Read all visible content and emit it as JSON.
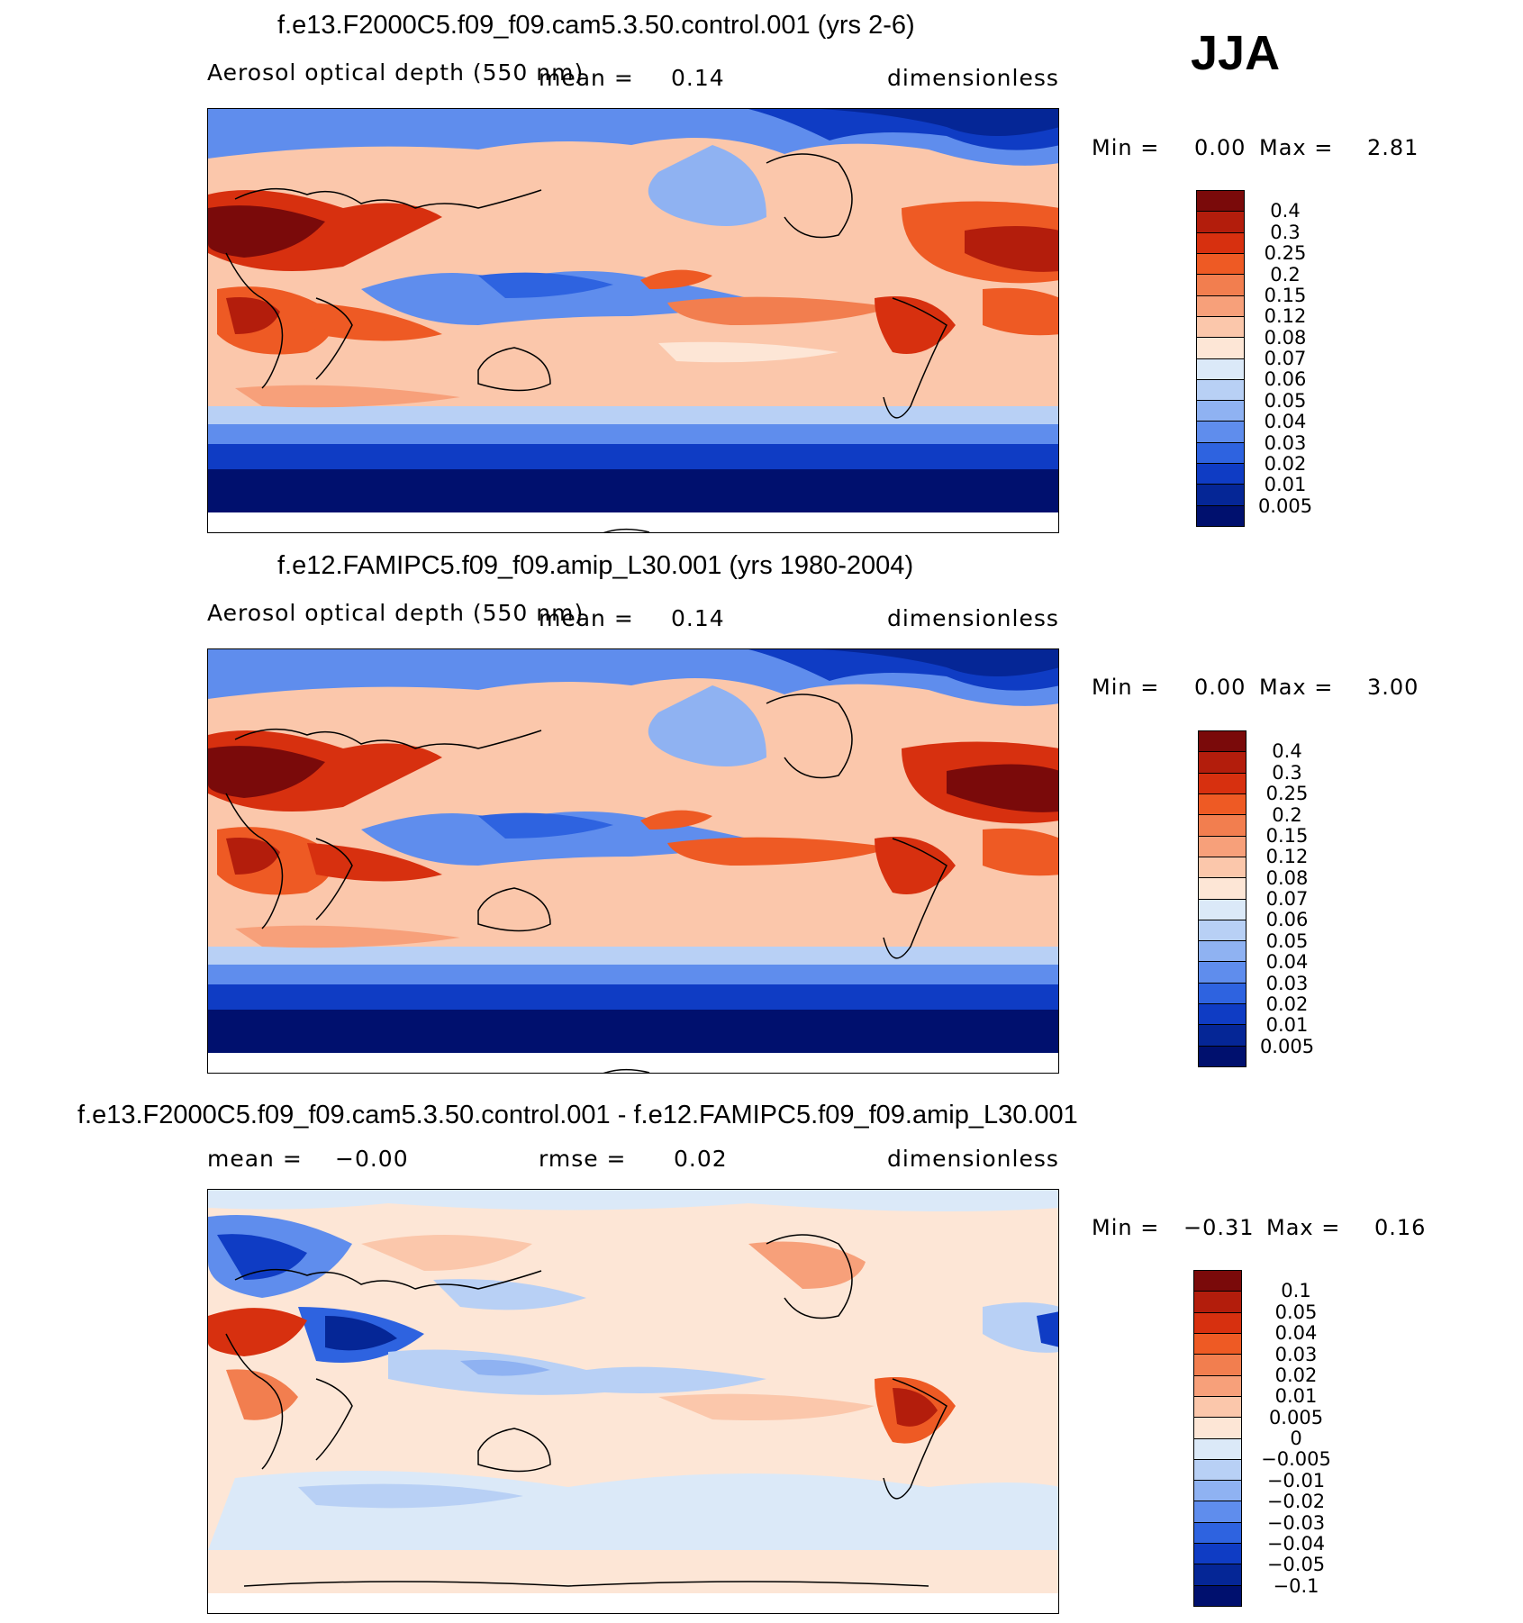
{
  "season": "JJA",
  "panels": [
    {
      "title": "f.e13.F2000C5.f09_f09.cam5.3.50.control.001 (yrs 2-6)",
      "left_label": "Aerosol optical depth (550 nm)",
      "center_label": "mean =",
      "center_value": "0.14",
      "units": "dimensionless",
      "min_label": "Min =",
      "min_value": "0.00",
      "max_label": "Max =",
      "max_value": "2.81"
    },
    {
      "title": "f.e12.FAMIPC5.f09_f09.amip_L30.001 (yrs 1980-2004)",
      "left_label": "Aerosol optical depth (550 nm)",
      "center_label": "mean =",
      "center_value": "0.14",
      "units": "dimensionless",
      "min_label": "Min =",
      "min_value": "0.00",
      "max_label": "Max =",
      "max_value": "3.00"
    },
    {
      "title": "f.e13.F2000C5.f09_f09.cam5.3.50.control.001 - f.e12.FAMIPC5.f09_f09.amip_L30.001",
      "left_label": "mean =",
      "left_value": "−0.00",
      "center_label": "rmse =",
      "center_value": "0.02",
      "units": "dimensionless",
      "min_label": "Min =",
      "min_value": "−0.31",
      "max_label": "Max =",
      "max_value": "0.16"
    }
  ],
  "colorbar_aod": {
    "labels": [
      "0.4",
      "0.3",
      "0.25",
      "0.2",
      "0.15",
      "0.12",
      "0.08",
      "0.07",
      "0.06",
      "0.05",
      "0.04",
      "0.03",
      "0.02",
      "0.01",
      "0.005"
    ],
    "colors": [
      "#7a0a0a",
      "#b31d0c",
      "#d7300f",
      "#ee5a24",
      "#f27e4f",
      "#f7a07a",
      "#fbc7ab",
      "#fde6d6",
      "#dbe9f8",
      "#b8d0f5",
      "#8fb2f2",
      "#5f8ded",
      "#2e63e0",
      "#0f3cc4",
      "#052696",
      "#00106e"
    ]
  },
  "colorbar_diff": {
    "labels": [
      "0.1",
      "0.05",
      "0.04",
      "0.03",
      "0.02",
      "0.01",
      "0.005",
      "0",
      "−0.005",
      "−0.01",
      "−0.02",
      "−0.03",
      "−0.04",
      "−0.05",
      "−0.1"
    ],
    "colors": [
      "#7a0a0a",
      "#b31d0c",
      "#d7300f",
      "#ee5a24",
      "#f27e4f",
      "#f7a07a",
      "#fbc7ab",
      "#fde6d6",
      "#dbe9f8",
      "#b8d0f5",
      "#8fb2f2",
      "#5f8ded",
      "#2e63e0",
      "#0f3cc4",
      "#052696",
      "#00106e"
    ]
  }
}
